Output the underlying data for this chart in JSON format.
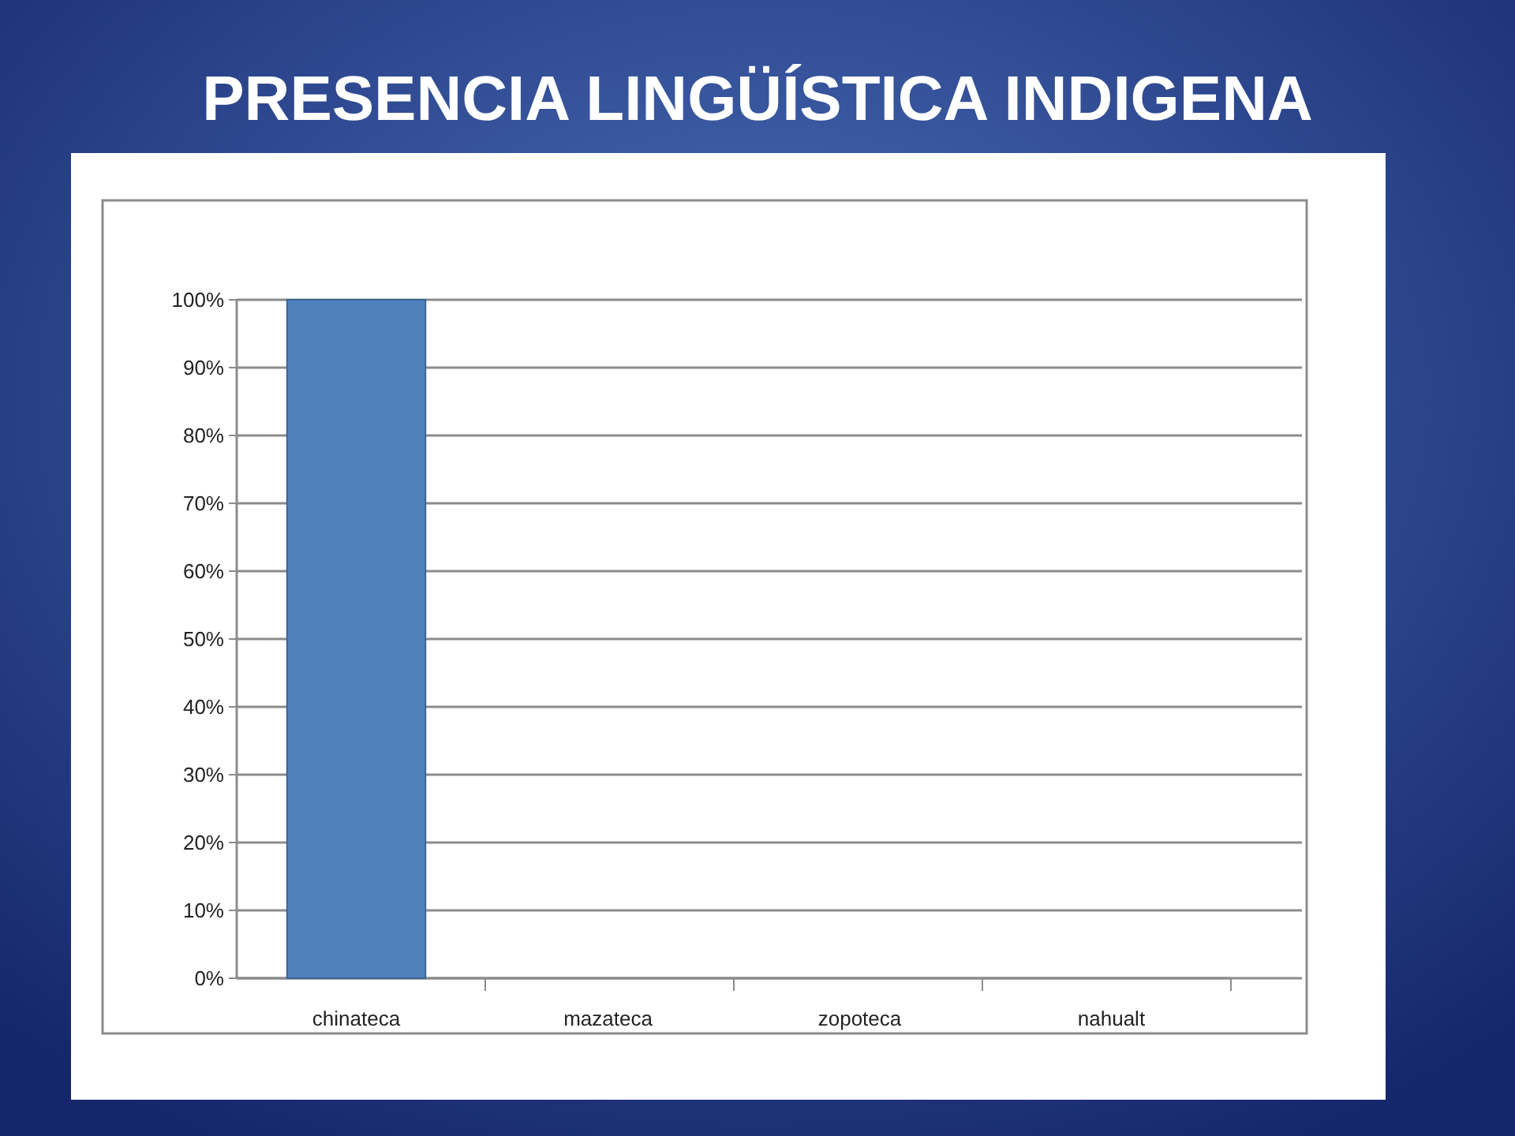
{
  "chart_data": {
    "type": "bar",
    "title": "PRESENCIA LINGÜÍSTICA INDIGENA",
    "categories": [
      "chinateca",
      "mazateca",
      "zopoteca",
      "nahualt"
    ],
    "values": [
      100,
      0,
      0,
      0
    ],
    "color": "#4f81bd",
    "ylim": [
      0,
      100
    ],
    "yticks": [
      {
        "value": 0,
        "label": "0%"
      },
      {
        "value": 10,
        "label": "10%"
      },
      {
        "value": 20,
        "label": "20%"
      },
      {
        "value": 30,
        "label": "30%"
      },
      {
        "value": 40,
        "label": "40%"
      },
      {
        "value": 50,
        "label": "50%"
      },
      {
        "value": 60,
        "label": "60%"
      },
      {
        "value": 70,
        "label": "70%"
      },
      {
        "value": 80,
        "label": "80%"
      },
      {
        "value": 90,
        "label": "90%"
      },
      {
        "value": 100,
        "label": "100%"
      }
    ],
    "grid": "y"
  }
}
